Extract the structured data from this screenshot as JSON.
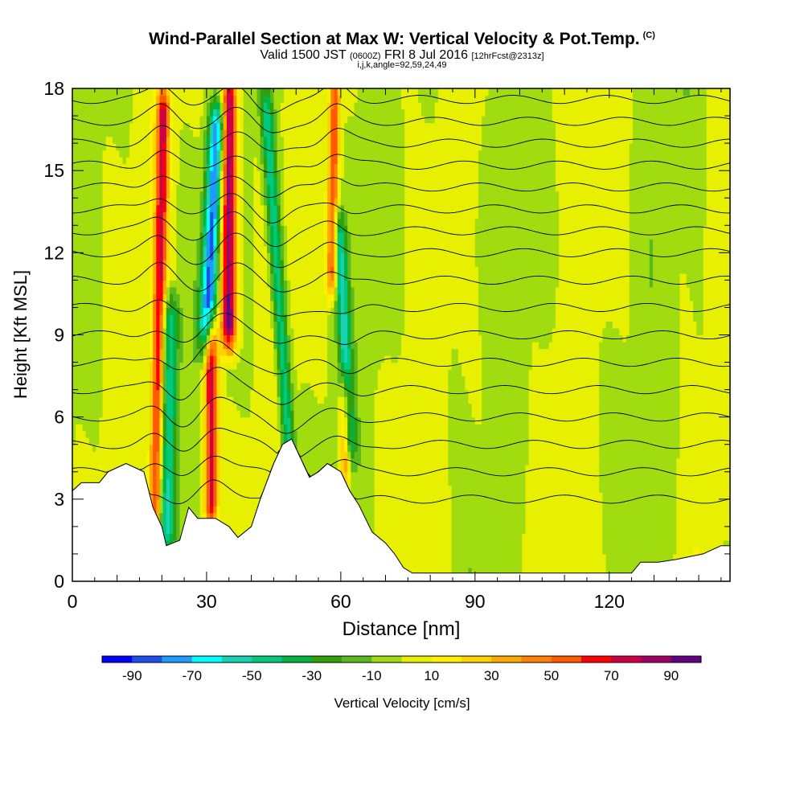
{
  "header": {
    "title": "Wind-Parallel Section at Max W: Vertical Velocity & Pot.Temp.",
    "copyright": "(C)",
    "valid_prefix": "Valid 1500 JST",
    "valid_utc": "(0600Z)",
    "valid_date": "FRI 8 Jul 2016",
    "forecast_tag": "[12hrFcst@2313z]",
    "grid_info": "i,j,k,angle=92,59,24,49"
  },
  "chart_data": {
    "type": "heatmap",
    "title": "Wind-Parallel Section at Max W: Vertical Velocity & Pot.Temp.",
    "xlabel": "Distance [nm]",
    "ylabel": "Height [Kft MSL]",
    "xlim": [
      0,
      147
    ],
    "ylim": [
      0,
      18
    ],
    "x_ticks": [
      0,
      30,
      60,
      90,
      120
    ],
    "y_ticks": [
      0,
      3,
      6,
      9,
      12,
      15,
      18
    ],
    "colorbar": {
      "label": "Vertical Velocity [cm/s]",
      "tick_labels": [
        -90,
        -70,
        -50,
        -30,
        -10,
        10,
        30,
        50,
        70,
        90
      ],
      "bins": [
        -100,
        -90,
        -80,
        -70,
        -60,
        -50,
        -40,
        -30,
        -20,
        -10,
        0,
        10,
        20,
        30,
        40,
        50,
        60,
        70,
        80,
        90,
        100
      ],
      "colors": [
        "#0000ff",
        "#1e50f0",
        "#1e9bff",
        "#00ffff",
        "#19d2b4",
        "#00c87d",
        "#00b443",
        "#32a00a",
        "#5ab91e",
        "#a0dc0f",
        "#e6f000",
        "#fff000",
        "#ffd200",
        "#ffaa00",
        "#ff8200",
        "#ff5a00",
        "#ff0000",
        "#cd0046",
        "#a00064",
        "#640082"
      ]
    },
    "plumes": [
      {
        "x": 18.5,
        "x_shift_per_kft": 0.12,
        "z_min": 2.0,
        "z_max": 17.5,
        "peak": 70,
        "width_nm": 1.4
      },
      {
        "x": 21.0,
        "x_shift_per_kft": 0.1,
        "z_min": 1.5,
        "z_max": 10.0,
        "peak": -50,
        "width_nm": 2.0
      },
      {
        "x": 31.0,
        "x_shift_per_kft": 0.0,
        "z_min": 2.5,
        "z_max": 9.0,
        "peak": 80,
        "width_nm": 1.5
      },
      {
        "x": 30.0,
        "x_shift_per_kft": 0.3,
        "z_min": 9.0,
        "z_max": 17.0,
        "peak": -80,
        "width_nm": 1.8
      },
      {
        "x": 35.0,
        "x_shift_per_kft": 0.0,
        "z_min": 9.0,
        "z_max": 18.0,
        "peak": 95,
        "width_nm": 1.8
      },
      {
        "x": 48.5,
        "x_shift_per_kft": -0.4,
        "z_min": 4.5,
        "z_max": 17.5,
        "peak": -50,
        "width_nm": 1.5
      },
      {
        "x": 58.0,
        "x_shift_per_kft": 0.1,
        "z_min": 11.0,
        "z_max": 18.0,
        "peak": 60,
        "width_nm": 1.2
      },
      {
        "x": 62.0,
        "x_shift_per_kft": -0.3,
        "z_min": 5.0,
        "z_max": 13.0,
        "peak": -50,
        "width_nm": 1.4
      },
      {
        "x": 61.0,
        "x_shift_per_kft": 0.0,
        "z_min": 4.0,
        "z_max": 7.0,
        "peak": 50,
        "width_nm": 1.2
      }
    ],
    "terrain_kft": [
      [
        0,
        3.3
      ],
      [
        2,
        3.6
      ],
      [
        6,
        3.6
      ],
      [
        8,
        4.0
      ],
      [
        12,
        4.3
      ],
      [
        16,
        4.0
      ],
      [
        18,
        2.7
      ],
      [
        20,
        2.0
      ],
      [
        21,
        1.3
      ],
      [
        24,
        1.5
      ],
      [
        26,
        2.7
      ],
      [
        28,
        2.3
      ],
      [
        32,
        2.3
      ],
      [
        35,
        2.0
      ],
      [
        37,
        1.6
      ],
      [
        40,
        2.0
      ],
      [
        42,
        3.0
      ],
      [
        45,
        4.3
      ],
      [
        47,
        5.0
      ],
      [
        49,
        5.2
      ],
      [
        51,
        4.5
      ],
      [
        53,
        3.8
      ],
      [
        55,
        4.0
      ],
      [
        57,
        4.3
      ],
      [
        60,
        4.0
      ],
      [
        62,
        3.3
      ],
      [
        64,
        2.8
      ],
      [
        67,
        1.8
      ],
      [
        70,
        1.4
      ],
      [
        72,
        1.0
      ],
      [
        74,
        0.5
      ],
      [
        76,
        0.3
      ],
      [
        80,
        0.3
      ],
      [
        90,
        0.3
      ],
      [
        110,
        0.3
      ],
      [
        125,
        0.3
      ],
      [
        127,
        0.7
      ],
      [
        131,
        0.7
      ],
      [
        135,
        0.8
      ],
      [
        141,
        1.0
      ],
      [
        145,
        1.3
      ],
      [
        147,
        1.3
      ]
    ],
    "isentrope_base_kft": [
      3.0,
      4.0,
      5.0,
      6.0,
      7.0,
      8.0,
      9.0,
      10.0,
      11.0,
      12.0,
      12.8,
      13.6,
      14.4,
      15.2,
      16.0,
      16.8,
      17.6
    ]
  }
}
